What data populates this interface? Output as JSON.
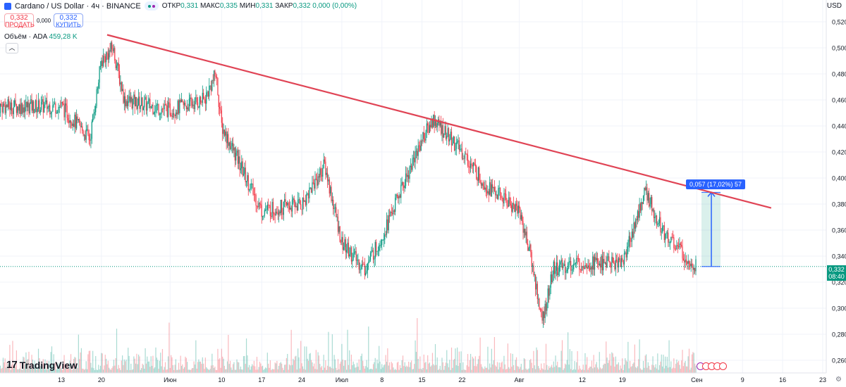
{
  "header": {
    "title": "Cardano / US Dollar · 4ч · BINANCE",
    "ohlc": [
      {
        "label": "ОТКР",
        "value": "0,331"
      },
      {
        "label": "МАКС",
        "value": "0,335"
      },
      {
        "label": "МИН",
        "value": "0,331"
      },
      {
        "label": "ЗАКР",
        "value": "0,332"
      },
      {
        "label": "",
        "value": "0,000 (0,00%)"
      }
    ]
  },
  "trade": {
    "sell_price": "0,332",
    "sell_label": "ПРОДАТЬ",
    "spread": "0,000",
    "buy_price": "0,332",
    "buy_label": "КУПИТЬ"
  },
  "volume": {
    "label": "Объём · ADA",
    "value": "459,28 K"
  },
  "currency": "USD",
  "logo": {
    "mark": "17",
    "text": "TradingView"
  },
  "measure_label": "0,057 (17,02%) 57",
  "price_label": {
    "price": "0,332",
    "time": "08:40"
  },
  "colors": {
    "up": "#089981",
    "down": "#f23645",
    "trendline": "#e04455",
    "measure": "#2962ff"
  },
  "chart_data": {
    "type": "candlestick",
    "ylim": [
      0.25,
      0.52
    ],
    "y_ticks": [
      "0,520",
      "0,500",
      "0,480",
      "0,460",
      "0,440",
      "0,420",
      "0,400",
      "0,380",
      "0,360",
      "0,340",
      "0,320",
      "0,300",
      "0,280",
      "0,260"
    ],
    "x_ticks": [
      "13",
      "20",
      "Июн",
      "10",
      "17",
      "24",
      "Июл",
      "8",
      "15",
      "22",
      "Авг",
      "12",
      "19",
      "Сен",
      "9",
      "16",
      "23"
    ],
    "close_path": [
      {
        "x": "13",
        "y": 0.455
      },
      {
        "x": "15-May",
        "y": 0.445
      },
      {
        "x": "18-May",
        "y": 0.43
      },
      {
        "x": "20",
        "y": 0.49
      },
      {
        "x": "22-May",
        "y": 0.5
      },
      {
        "x": "24-May",
        "y": 0.46
      },
      {
        "x": "Июн",
        "y": 0.452
      },
      {
        "x": "07-Jun",
        "y": 0.46
      },
      {
        "x": "09-Jun",
        "y": 0.48
      },
      {
        "x": "10",
        "y": 0.44
      },
      {
        "x": "17",
        "y": 0.375
      },
      {
        "x": "24",
        "y": 0.38
      },
      {
        "x": "28-Jun",
        "y": 0.41
      },
      {
        "x": "Июл",
        "y": 0.35
      },
      {
        "x": "05-Jul",
        "y": 0.33
      },
      {
        "x": "8",
        "y": 0.355
      },
      {
        "x": "15",
        "y": 0.43
      },
      {
        "x": "17-Jul",
        "y": 0.445
      },
      {
        "x": "22",
        "y": 0.42
      },
      {
        "x": "26-Jul",
        "y": 0.395
      },
      {
        "x": "Авг",
        "y": 0.375
      },
      {
        "x": "03-Aug",
        "y": 0.34
      },
      {
        "x": "05-Aug",
        "y": 0.29
      },
      {
        "x": "07-Aug",
        "y": 0.33
      },
      {
        "x": "12",
        "y": 0.335
      },
      {
        "x": "19",
        "y": 0.335
      },
      {
        "x": "23-Aug",
        "y": 0.39
      },
      {
        "x": "26-Aug",
        "y": 0.36
      },
      {
        "x": "30-Aug",
        "y": 0.34
      },
      {
        "x": "Сен",
        "y": 0.332
      }
    ],
    "trendline": {
      "from": {
        "x": "21-May",
        "y": 0.51
      },
      "to": {
        "x": "14-Sep",
        "y": 0.377
      }
    },
    "measure": {
      "from": 0.332,
      "to": 0.389,
      "change": "0,057 (17,02%) 57"
    },
    "last_price": 0.332
  }
}
